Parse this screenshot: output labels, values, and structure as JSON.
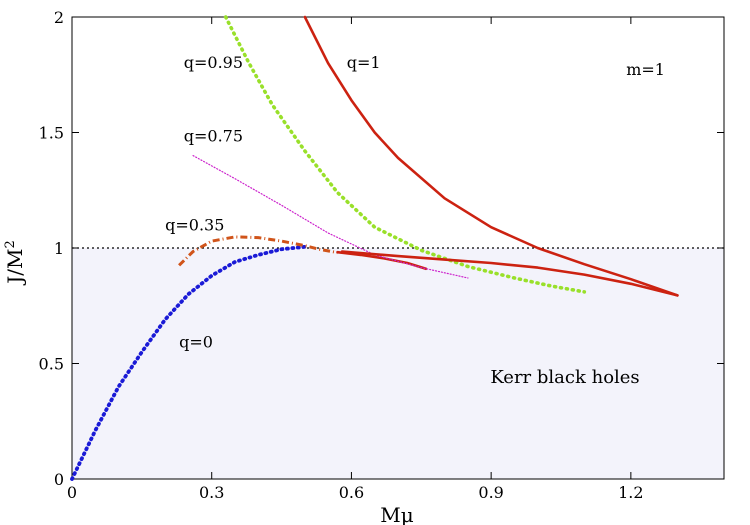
{
  "chart_data": {
    "type": "line",
    "xlabel": "Mμ",
    "ylabel_base": "J/M",
    "ylabel_sup": "2",
    "xlim": [
      0,
      1.4
    ],
    "ylim": [
      0,
      2
    ],
    "xticks": [
      0,
      0.3,
      0.6,
      0.9,
      1.2
    ],
    "xtick_labels": [
      "0",
      "0.3",
      "0.6",
      "0.9",
      "1.2"
    ],
    "yticks": [
      0,
      0.5,
      1,
      1.5,
      2
    ],
    "ytick_labels": [
      "0",
      "0.5",
      "1",
      "1.5",
      "2"
    ],
    "colors": {
      "q0": "#1a1ad6",
      "q035": "#d0541a",
      "q075": "#cc22cc",
      "q095": "#99e02a",
      "q1": "#cc2211",
      "region": "#f3f3fb",
      "kerr_bound": "#000000"
    },
    "kerr_region": {
      "label": "Kerr black holes",
      "y_max": 1.0
    },
    "series": [
      {
        "name": "q=0",
        "label": "q=0",
        "color_key": "q0",
        "style": "dotted",
        "x": [
          0.0,
          0.05,
          0.1,
          0.15,
          0.2,
          0.25,
          0.3,
          0.35,
          0.4,
          0.45,
          0.5
        ],
        "y": [
          0.0,
          0.21,
          0.4,
          0.55,
          0.69,
          0.8,
          0.88,
          0.94,
          0.97,
          0.995,
          1.005
        ]
      },
      {
        "name": "q=0.35",
        "label": "q=0.35",
        "color_key": "q035",
        "style": "dashdot",
        "x": [
          0.23,
          0.26,
          0.3,
          0.35,
          0.4,
          0.45,
          0.5,
          0.53,
          0.57
        ],
        "y": [
          0.925,
          0.985,
          1.03,
          1.048,
          1.045,
          1.03,
          1.01,
          0.995,
          0.98
        ]
      },
      {
        "name": "q=0.35 (lower branch)",
        "label": "",
        "color_key": "q1",
        "style": "solid",
        "x": [
          0.57,
          0.62,
          0.67,
          0.72,
          0.76
        ],
        "y": [
          0.982,
          0.97,
          0.955,
          0.935,
          0.91
        ]
      },
      {
        "name": "q=0.75",
        "label": "q=0.75",
        "color_key": "q075",
        "style": "thin-dotted",
        "x": [
          0.26,
          0.35,
          0.45,
          0.55,
          0.65,
          0.75,
          0.85
        ],
        "y": [
          1.4,
          1.3,
          1.185,
          1.065,
          0.97,
          0.915,
          0.87
        ]
      },
      {
        "name": "q=0.95",
        "label": "q=0.95",
        "color_key": "q095",
        "style": "dotted-thick",
        "x": [
          0.33,
          0.38,
          0.43,
          0.5,
          0.57,
          0.65,
          0.75,
          0.85,
          0.95,
          1.03,
          1.1
        ],
        "y": [
          2.0,
          1.8,
          1.62,
          1.42,
          1.24,
          1.09,
          0.99,
          0.92,
          0.87,
          0.835,
          0.81
        ]
      },
      {
        "name": "q=1",
        "label": "q=1",
        "color_key": "q1",
        "style": "solid",
        "x": [
          0.5,
          0.55,
          0.6,
          0.65,
          0.7,
          0.8,
          0.9,
          1.0,
          1.1,
          1.2,
          1.3
        ],
        "y": [
          2.0,
          1.8,
          1.64,
          1.5,
          1.39,
          1.215,
          1.09,
          1.0,
          0.93,
          0.865,
          0.795
        ]
      },
      {
        "name": "q=1 (lower branch)",
        "label": "",
        "color_key": "q1",
        "style": "solid",
        "x": [
          0.58,
          0.7,
          0.8,
          0.9,
          1.0,
          1.1,
          1.2,
          1.3
        ],
        "y": [
          0.985,
          0.965,
          0.95,
          0.935,
          0.915,
          0.885,
          0.845,
          0.795
        ]
      }
    ],
    "annotations": [
      {
        "text": "m=1",
        "x": 1.19,
        "y": 1.75
      },
      {
        "text": "q=1",
        "x": 0.59,
        "y": 1.78
      },
      {
        "text": "q=0.95",
        "x": 0.24,
        "y": 1.78
      },
      {
        "text": "q=0.75",
        "x": 0.24,
        "y": 1.46
      },
      {
        "text": "q=0.35",
        "x": 0.2,
        "y": 1.075
      },
      {
        "text": "q=0",
        "x": 0.23,
        "y": 0.57
      }
    ]
  }
}
